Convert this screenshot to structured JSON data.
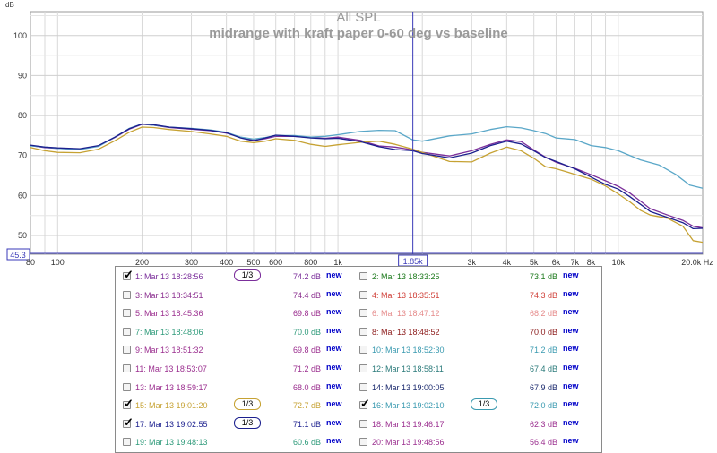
{
  "chart_data": {
    "type": "line",
    "title": "All SPL",
    "subtitle": "midrange with kraft paper 0-60 deg vs baseline",
    "ylabel": "dB",
    "xlabel": "",
    "x_scale": "log",
    "xlim": [
      80,
      20000
    ],
    "ylim": [
      45.3,
      106
    ],
    "y_ticks": [
      50,
      60,
      70,
      80,
      90,
      100
    ],
    "x_ticks": [
      {
        "v": 80,
        "label": "80"
      },
      {
        "v": 100,
        "label": "100"
      },
      {
        "v": 200,
        "label": "200"
      },
      {
        "v": 300,
        "label": "300"
      },
      {
        "v": 400,
        "label": "400"
      },
      {
        "v": 500,
        "label": "500"
      },
      {
        "v": 600,
        "label": "600"
      },
      {
        "v": 800,
        "label": "800"
      },
      {
        "v": 1000,
        "label": "1k"
      },
      {
        "v": 3000,
        "label": "3k"
      },
      {
        "v": 4000,
        "label": "4k"
      },
      {
        "v": 5000,
        "label": "5k"
      },
      {
        "v": 6000,
        "label": "6k"
      },
      {
        "v": 7000,
        "label": "7k"
      },
      {
        "v": 8000,
        "label": "8k"
      },
      {
        "v": 10000,
        "label": "10k"
      },
      {
        "v": 20000,
        "label": "20.0k Hz"
      }
    ],
    "cursor": {
      "x": 1850,
      "x_label": "1.85k",
      "y_label": "45.3"
    },
    "grid": true,
    "series": [
      {
        "name": "1: Mar 13 18:28:56",
        "color": "#7b2f9b",
        "points": [
          [
            80,
            72.5
          ],
          [
            90,
            72
          ],
          [
            100,
            71.8
          ],
          [
            120,
            71.6
          ],
          [
            140,
            72.4
          ],
          [
            160,
            74.5
          ],
          [
            180,
            76.6
          ],
          [
            200,
            77.8
          ],
          [
            220,
            77.6
          ],
          [
            250,
            77
          ],
          [
            300,
            76.6
          ],
          [
            350,
            76.2
          ],
          [
            400,
            75.6
          ],
          [
            450,
            74.6
          ],
          [
            500,
            73.8
          ],
          [
            550,
            74.2
          ],
          [
            600,
            74.8
          ],
          [
            700,
            74.8
          ],
          [
            800,
            74.5
          ],
          [
            900,
            74.3
          ],
          [
            1000,
            74.6
          ],
          [
            1200,
            73.8
          ],
          [
            1400,
            72.4
          ],
          [
            1600,
            72.1
          ],
          [
            1850,
            71.4
          ],
          [
            2000,
            70.8
          ],
          [
            2500,
            69.9
          ],
          [
            3000,
            71.2
          ],
          [
            3500,
            72.8
          ],
          [
            4000,
            73.9
          ],
          [
            4500,
            73.5
          ],
          [
            5000,
            71.4
          ],
          [
            5500,
            69.6
          ],
          [
            6000,
            68.3
          ],
          [
            7000,
            66.8
          ],
          [
            8000,
            65.2
          ],
          [
            9000,
            63.7
          ],
          [
            10000,
            62.3
          ],
          [
            11000,
            60.6
          ],
          [
            12000,
            58.6
          ],
          [
            13000,
            56.7
          ],
          [
            15000,
            55.1
          ],
          [
            17000,
            53.8
          ],
          [
            18500,
            52.3
          ],
          [
            20000,
            51.9
          ]
        ]
      },
      {
        "name": "15: Mar 13 19:01:20",
        "color": "#c6a233",
        "points": [
          [
            80,
            72
          ],
          [
            90,
            71.2
          ],
          [
            100,
            70.8
          ],
          [
            120,
            70.7
          ],
          [
            140,
            71.6
          ],
          [
            160,
            73.7
          ],
          [
            180,
            75.8
          ],
          [
            200,
            77.1
          ],
          [
            220,
            77
          ],
          [
            250,
            76.5
          ],
          [
            300,
            76
          ],
          [
            350,
            75.4
          ],
          [
            400,
            74.8
          ],
          [
            450,
            73.6
          ],
          [
            500,
            73.2
          ],
          [
            550,
            73.6
          ],
          [
            600,
            74.2
          ],
          [
            700,
            73.8
          ],
          [
            800,
            72.8
          ],
          [
            900,
            72.3
          ],
          [
            1000,
            72.7
          ],
          [
            1200,
            73.3
          ],
          [
            1400,
            73.6
          ],
          [
            1600,
            72.8
          ],
          [
            1850,
            71.6
          ],
          [
            2000,
            70.8
          ],
          [
            2500,
            68.5
          ],
          [
            3000,
            68.4
          ],
          [
            3500,
            70.6
          ],
          [
            4000,
            72.1
          ],
          [
            4500,
            71.2
          ],
          [
            5000,
            69.3
          ],
          [
            5500,
            67.2
          ],
          [
            6000,
            66.7
          ],
          [
            7000,
            65.3
          ],
          [
            8000,
            64.1
          ],
          [
            9000,
            62.4
          ],
          [
            10000,
            60.4
          ],
          [
            11000,
            58.4
          ],
          [
            12000,
            56.3
          ],
          [
            13000,
            55.1
          ],
          [
            15000,
            54.3
          ],
          [
            17000,
            52.3
          ],
          [
            18500,
            48.7
          ],
          [
            20000,
            48.3
          ]
        ]
      },
      {
        "name": "16: Mar 13 19:02:10",
        "color": "#5aa7c8",
        "points": [
          [
            80,
            72.4
          ],
          [
            90,
            72.1
          ],
          [
            100,
            71.8
          ],
          [
            120,
            71.5
          ],
          [
            140,
            72.3
          ],
          [
            160,
            74.6
          ],
          [
            180,
            76.8
          ],
          [
            200,
            77.9
          ],
          [
            220,
            77.6
          ],
          [
            250,
            77.1
          ],
          [
            300,
            76.8
          ],
          [
            350,
            76.4
          ],
          [
            400,
            75.8
          ],
          [
            450,
            74.6
          ],
          [
            500,
            74.1
          ],
          [
            550,
            74.5
          ],
          [
            600,
            75
          ],
          [
            700,
            75
          ],
          [
            800,
            74.6
          ],
          [
            900,
            74.8
          ],
          [
            1000,
            75.2
          ],
          [
            1200,
            76
          ],
          [
            1400,
            76.3
          ],
          [
            1600,
            76.2
          ],
          [
            1850,
            73.9
          ],
          [
            2000,
            73.6
          ],
          [
            2500,
            74.9
          ],
          [
            3000,
            75.4
          ],
          [
            3500,
            76.5
          ],
          [
            4000,
            77.2
          ],
          [
            4500,
            76.9
          ],
          [
            5000,
            76.2
          ],
          [
            5500,
            75.5
          ],
          [
            6000,
            74.4
          ],
          [
            7000,
            74
          ],
          [
            8000,
            72.5
          ],
          [
            9000,
            72
          ],
          [
            10000,
            71.2
          ],
          [
            12000,
            68.9
          ],
          [
            14000,
            67.6
          ],
          [
            16000,
            65.3
          ],
          [
            18000,
            62.6
          ],
          [
            20000,
            61.8
          ]
        ]
      },
      {
        "name": "17: Mar 13 19:02:55",
        "color": "#1b1f8e",
        "points": [
          [
            80,
            72.6
          ],
          [
            90,
            72.1
          ],
          [
            100,
            71.9
          ],
          [
            120,
            71.7
          ],
          [
            140,
            72.5
          ],
          [
            160,
            74.6
          ],
          [
            180,
            76.7
          ],
          [
            200,
            77.9
          ],
          [
            220,
            77.7
          ],
          [
            250,
            77.1
          ],
          [
            300,
            76.7
          ],
          [
            350,
            76.3
          ],
          [
            400,
            75.7
          ],
          [
            450,
            74.4
          ],
          [
            500,
            73.7
          ],
          [
            550,
            74.4
          ],
          [
            600,
            75.1
          ],
          [
            700,
            74.8
          ],
          [
            800,
            74.4
          ],
          [
            900,
            74.2
          ],
          [
            1000,
            74.3
          ],
          [
            1200,
            73.5
          ],
          [
            1400,
            72.2
          ],
          [
            1600,
            71.5
          ],
          [
            1850,
            71.2
          ],
          [
            2000,
            70.5
          ],
          [
            2500,
            69.4
          ],
          [
            3000,
            70.6
          ],
          [
            3500,
            72.5
          ],
          [
            4000,
            73.6
          ],
          [
            4500,
            72.9
          ],
          [
            5000,
            71.2
          ],
          [
            5500,
            69.5
          ],
          [
            6000,
            68.5
          ],
          [
            7000,
            66.7
          ],
          [
            8000,
            64.6
          ],
          [
            9000,
            62.8
          ],
          [
            10000,
            61.6
          ],
          [
            11000,
            59.7
          ],
          [
            12000,
            57.8
          ],
          [
            13000,
            56
          ],
          [
            15000,
            54.5
          ],
          [
            17000,
            53.2
          ],
          [
            18500,
            51.7
          ],
          [
            20000,
            51.8
          ]
        ]
      }
    ]
  },
  "legend": {
    "rows": [
      {
        "left": {
          "checked": true,
          "label": "1: Mar 13 18:28:56",
          "color": "#7b2f9b",
          "smoothing": "1/3",
          "level": "74.2",
          "unit": "dB",
          "new": "new"
        },
        "right": {
          "checked": false,
          "label": "2: Mar 13 18:33:25",
          "color": "#1e7a1e",
          "smoothing": "",
          "level": "73.1",
          "unit": "dB",
          "new": "new"
        }
      },
      {
        "left": {
          "checked": false,
          "label": "3: Mar 13 18:34:51",
          "color": "#8b2f8f",
          "smoothing": "",
          "level": "74.4",
          "unit": "dB",
          "new": "new"
        },
        "right": {
          "checked": false,
          "label": "4: Mar 13 18:35:51",
          "color": "#d0413a",
          "smoothing": "",
          "level": "74.3",
          "unit": "dB",
          "new": "new"
        }
      },
      {
        "left": {
          "checked": false,
          "label": "5: Mar 13 18:45:36",
          "color": "#9b2f8f",
          "smoothing": "",
          "level": "69.8",
          "unit": "dB",
          "new": "new"
        },
        "right": {
          "checked": false,
          "label": "6: Mar 13 18:47:12",
          "color": "#e58a8a",
          "smoothing": "",
          "level": "68.2",
          "unit": "dB",
          "new": "new"
        }
      },
      {
        "left": {
          "checked": false,
          "label": "7: Mar 13 18:48:06",
          "color": "#2e9a7a",
          "smoothing": "",
          "level": "70.0",
          "unit": "dB",
          "new": "new"
        },
        "right": {
          "checked": false,
          "label": "8: Mar 13 18:48:52",
          "color": "#8b1a1a",
          "smoothing": "",
          "level": "70.0",
          "unit": "dB",
          "new": "new"
        }
      },
      {
        "left": {
          "checked": false,
          "label": "9: Mar 13 18:51:32",
          "color": "#9b2f8f",
          "smoothing": "",
          "level": "69.8",
          "unit": "dB",
          "new": "new"
        },
        "right": {
          "checked": false,
          "label": "10: Mar 13 18:52:30",
          "color": "#3a9ab0",
          "smoothing": "",
          "level": "71.2",
          "unit": "dB",
          "new": "new"
        }
      },
      {
        "left": {
          "checked": false,
          "label": "11: Mar 13 18:53:07",
          "color": "#9b2f8f",
          "smoothing": "",
          "level": "71.2",
          "unit": "dB",
          "new": "new"
        },
        "right": {
          "checked": false,
          "label": "12: Mar 13 18:58:11",
          "color": "#2a7a7a",
          "smoothing": "",
          "level": "67.4",
          "unit": "dB",
          "new": "new"
        }
      },
      {
        "left": {
          "checked": false,
          "label": "13: Mar 13 18:59:17",
          "color": "#9b2f8f",
          "smoothing": "",
          "level": "68.0",
          "unit": "dB",
          "new": "new"
        },
        "right": {
          "checked": false,
          "label": "14: Mar 13 19:00:05",
          "color": "#1b2a6e",
          "smoothing": "",
          "level": "67.9",
          "unit": "dB",
          "new": "new"
        }
      },
      {
        "left": {
          "checked": true,
          "label": "15: Mar 13 19:01:20",
          "color": "#c6a233",
          "smoothing": "1/3",
          "level": "72.7",
          "unit": "dB",
          "new": "new"
        },
        "right": {
          "checked": true,
          "label": "16: Mar 13 19:02:10",
          "color": "#3a9ab0",
          "smoothing": "1/3",
          "level": "72.0",
          "unit": "dB",
          "new": "new"
        }
      },
      {
        "left": {
          "checked": true,
          "label": "17: Mar 13 19:02:55",
          "color": "#1b1f8e",
          "smoothing": "1/3",
          "level": "71.1",
          "unit": "dB",
          "new": "new"
        },
        "right": {
          "checked": false,
          "label": "18: Mar 13 19:46:17",
          "color": "#9b2f8f",
          "smoothing": "",
          "level": "62.3",
          "unit": "dB",
          "new": "new"
        }
      },
      {
        "left": {
          "checked": false,
          "label": "19: Mar 13 19:48:13",
          "color": "#2e9a7a",
          "smoothing": "",
          "level": "60.6",
          "unit": "dB",
          "new": "new"
        },
        "right": {
          "checked": false,
          "label": "20: Mar 13 19:48:56",
          "color": "#9b2f8f",
          "smoothing": "",
          "level": "56.4",
          "unit": "dB",
          "new": "new"
        }
      }
    ]
  }
}
